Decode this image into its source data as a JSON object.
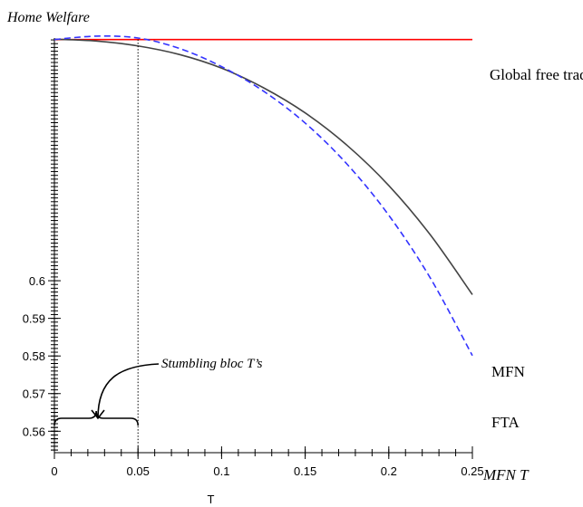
{
  "chart_data": {
    "type": "line",
    "title": "Home Welfare",
    "xlabel": "T",
    "x_axis_note": "MFN T",
    "xlim": [
      0,
      0.25
    ],
    "ylim": [
      0.5543,
      0.6645
    ],
    "x_ticks": [
      0,
      0.05,
      0.1,
      0.15,
      0.2,
      0.25
    ],
    "x_tick_labels": [
      "0",
      "0.05",
      "0.1",
      "0.15",
      "0.2",
      "0.25"
    ],
    "y_ticks": [
      0.56,
      0.57,
      0.58,
      0.59,
      0.6
    ],
    "y_tick_labels": [
      "0.56",
      "0.57",
      "0.58",
      "0.59",
      "0.6"
    ],
    "grid": false,
    "series": [
      {
        "name": "Global free trade",
        "color": "#ff0000",
        "style": "solid",
        "x": [
          0,
          0.25
        ],
        "values": [
          0.6641,
          0.6641
        ]
      },
      {
        "name": "MFN",
        "color": "#444444",
        "style": "solid",
        "x": [
          0,
          0.025,
          0.05,
          0.075,
          0.1,
          0.125,
          0.15,
          0.175,
          0.2,
          0.225,
          0.25
        ],
        "values": [
          0.6642,
          0.6637,
          0.6624,
          0.6601,
          0.6565,
          0.6513,
          0.6446,
          0.636,
          0.6253,
          0.6121,
          0.5963
        ]
      },
      {
        "name": "FTA",
        "color": "#3333ff",
        "style": "dashed",
        "x": [
          0,
          0.025,
          0.05,
          0.075,
          0.1,
          0.125,
          0.15,
          0.175,
          0.2,
          0.225,
          0.25
        ],
        "values": [
          0.6641,
          0.665,
          0.6645,
          0.6617,
          0.6569,
          0.6504,
          0.6419,
          0.631,
          0.6174,
          0.6006,
          0.5801
        ]
      }
    ],
    "annotations": {
      "vline_x": 0.05,
      "stumbling_label": "Stumbling bloc T’s"
    }
  }
}
